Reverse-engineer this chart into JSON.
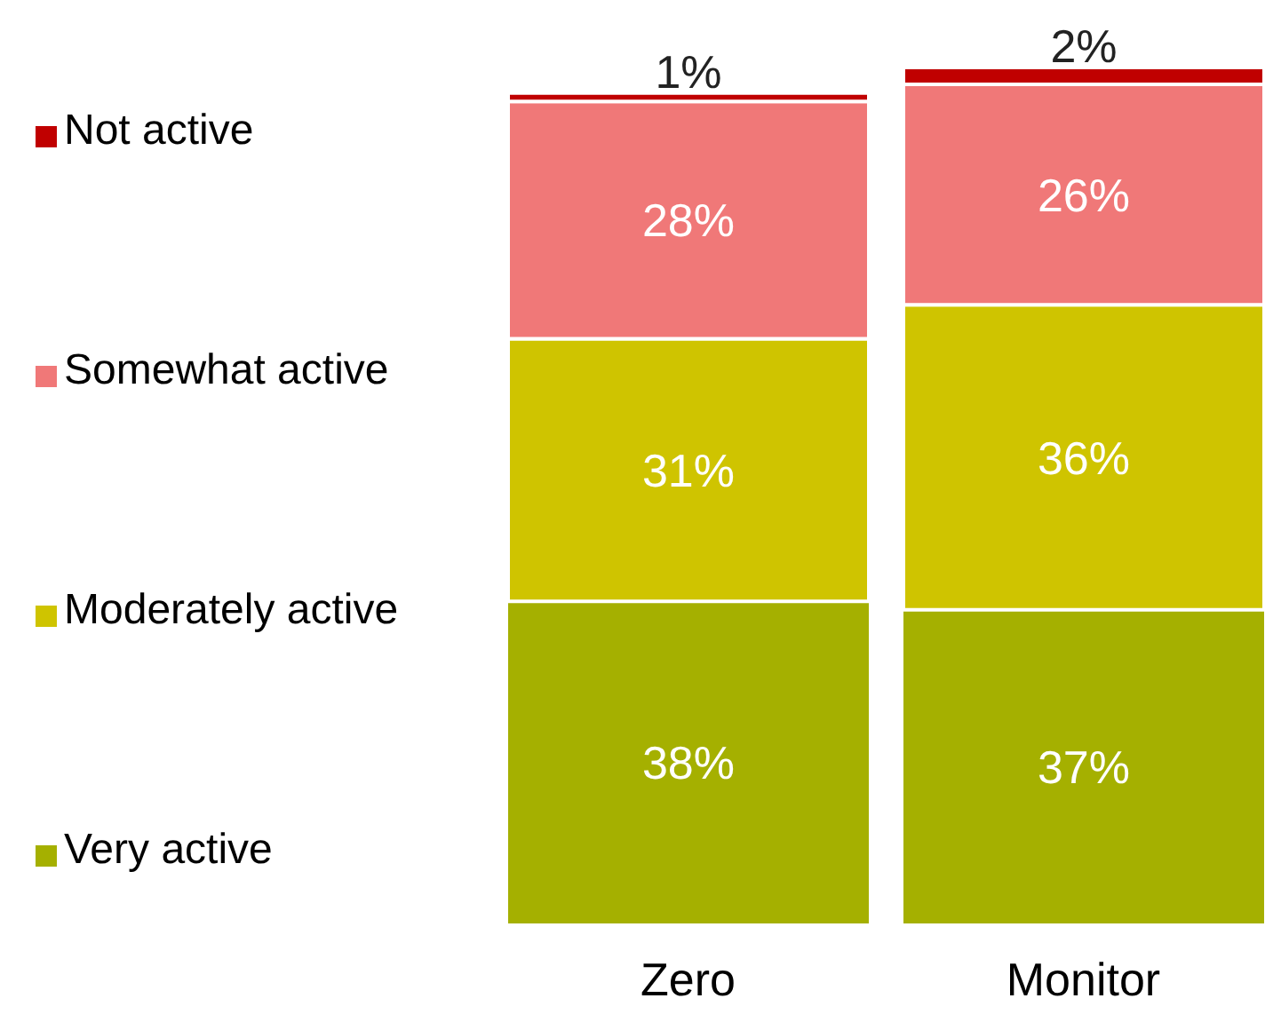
{
  "chart_data": {
    "type": "bar",
    "stacked": true,
    "categories": [
      "Zero",
      "Monitor"
    ],
    "series": [
      {
        "name": "Very active",
        "color": "#a5b000",
        "values": [
          38,
          37
        ],
        "value_labels": [
          "38%",
          "37%"
        ]
      },
      {
        "name": "Moderately active",
        "color": "#cfc400",
        "values": [
          31,
          36
        ],
        "value_labels": [
          "31%",
          "36%"
        ]
      },
      {
        "name": "Somewhat active",
        "color": "#f07878",
        "values": [
          28,
          26
        ],
        "value_labels": [
          "28%",
          "26%"
        ]
      },
      {
        "name": "Not active",
        "color": "#c00000",
        "values": [
          1,
          2
        ],
        "value_labels": [
          "1%",
          "2%"
        ]
      }
    ],
    "legend": "left"
  }
}
